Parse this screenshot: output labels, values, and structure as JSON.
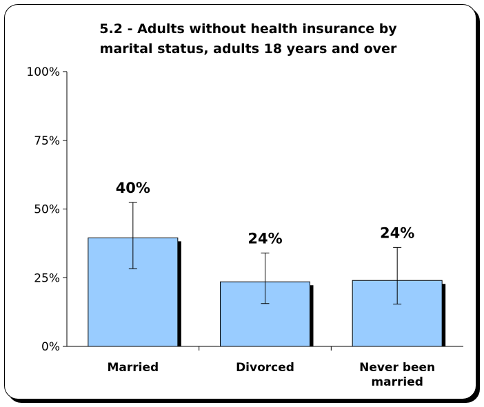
{
  "chart_data": {
    "type": "bar",
    "title": "5.2 - Adults without health insurance by marital status, adults 18 years and over",
    "title_lines": [
      "5.2 - Adults without health insurance by",
      "marital status, adults 18 years and over"
    ],
    "categories": [
      "Married",
      "Divorced",
      "Never been married"
    ],
    "category_lines": [
      [
        "Married"
      ],
      [
        "Divorced"
      ],
      [
        "Never been",
        "married"
      ]
    ],
    "values": [
      39.5,
      23.5,
      24.0
    ],
    "value_labels": [
      "40%",
      "24%",
      "24%"
    ],
    "error_low": [
      28.3,
      15.6,
      15.4
    ],
    "error_high": [
      52.4,
      34.0,
      36.0
    ],
    "yticks": [
      "0%",
      "25%",
      "50%",
      "75%",
      "100%"
    ],
    "ylim": [
      0,
      100
    ],
    "bar_color": "#99ccff",
    "bar_shadow_color": "#000000",
    "grid": false,
    "legend": "none"
  }
}
